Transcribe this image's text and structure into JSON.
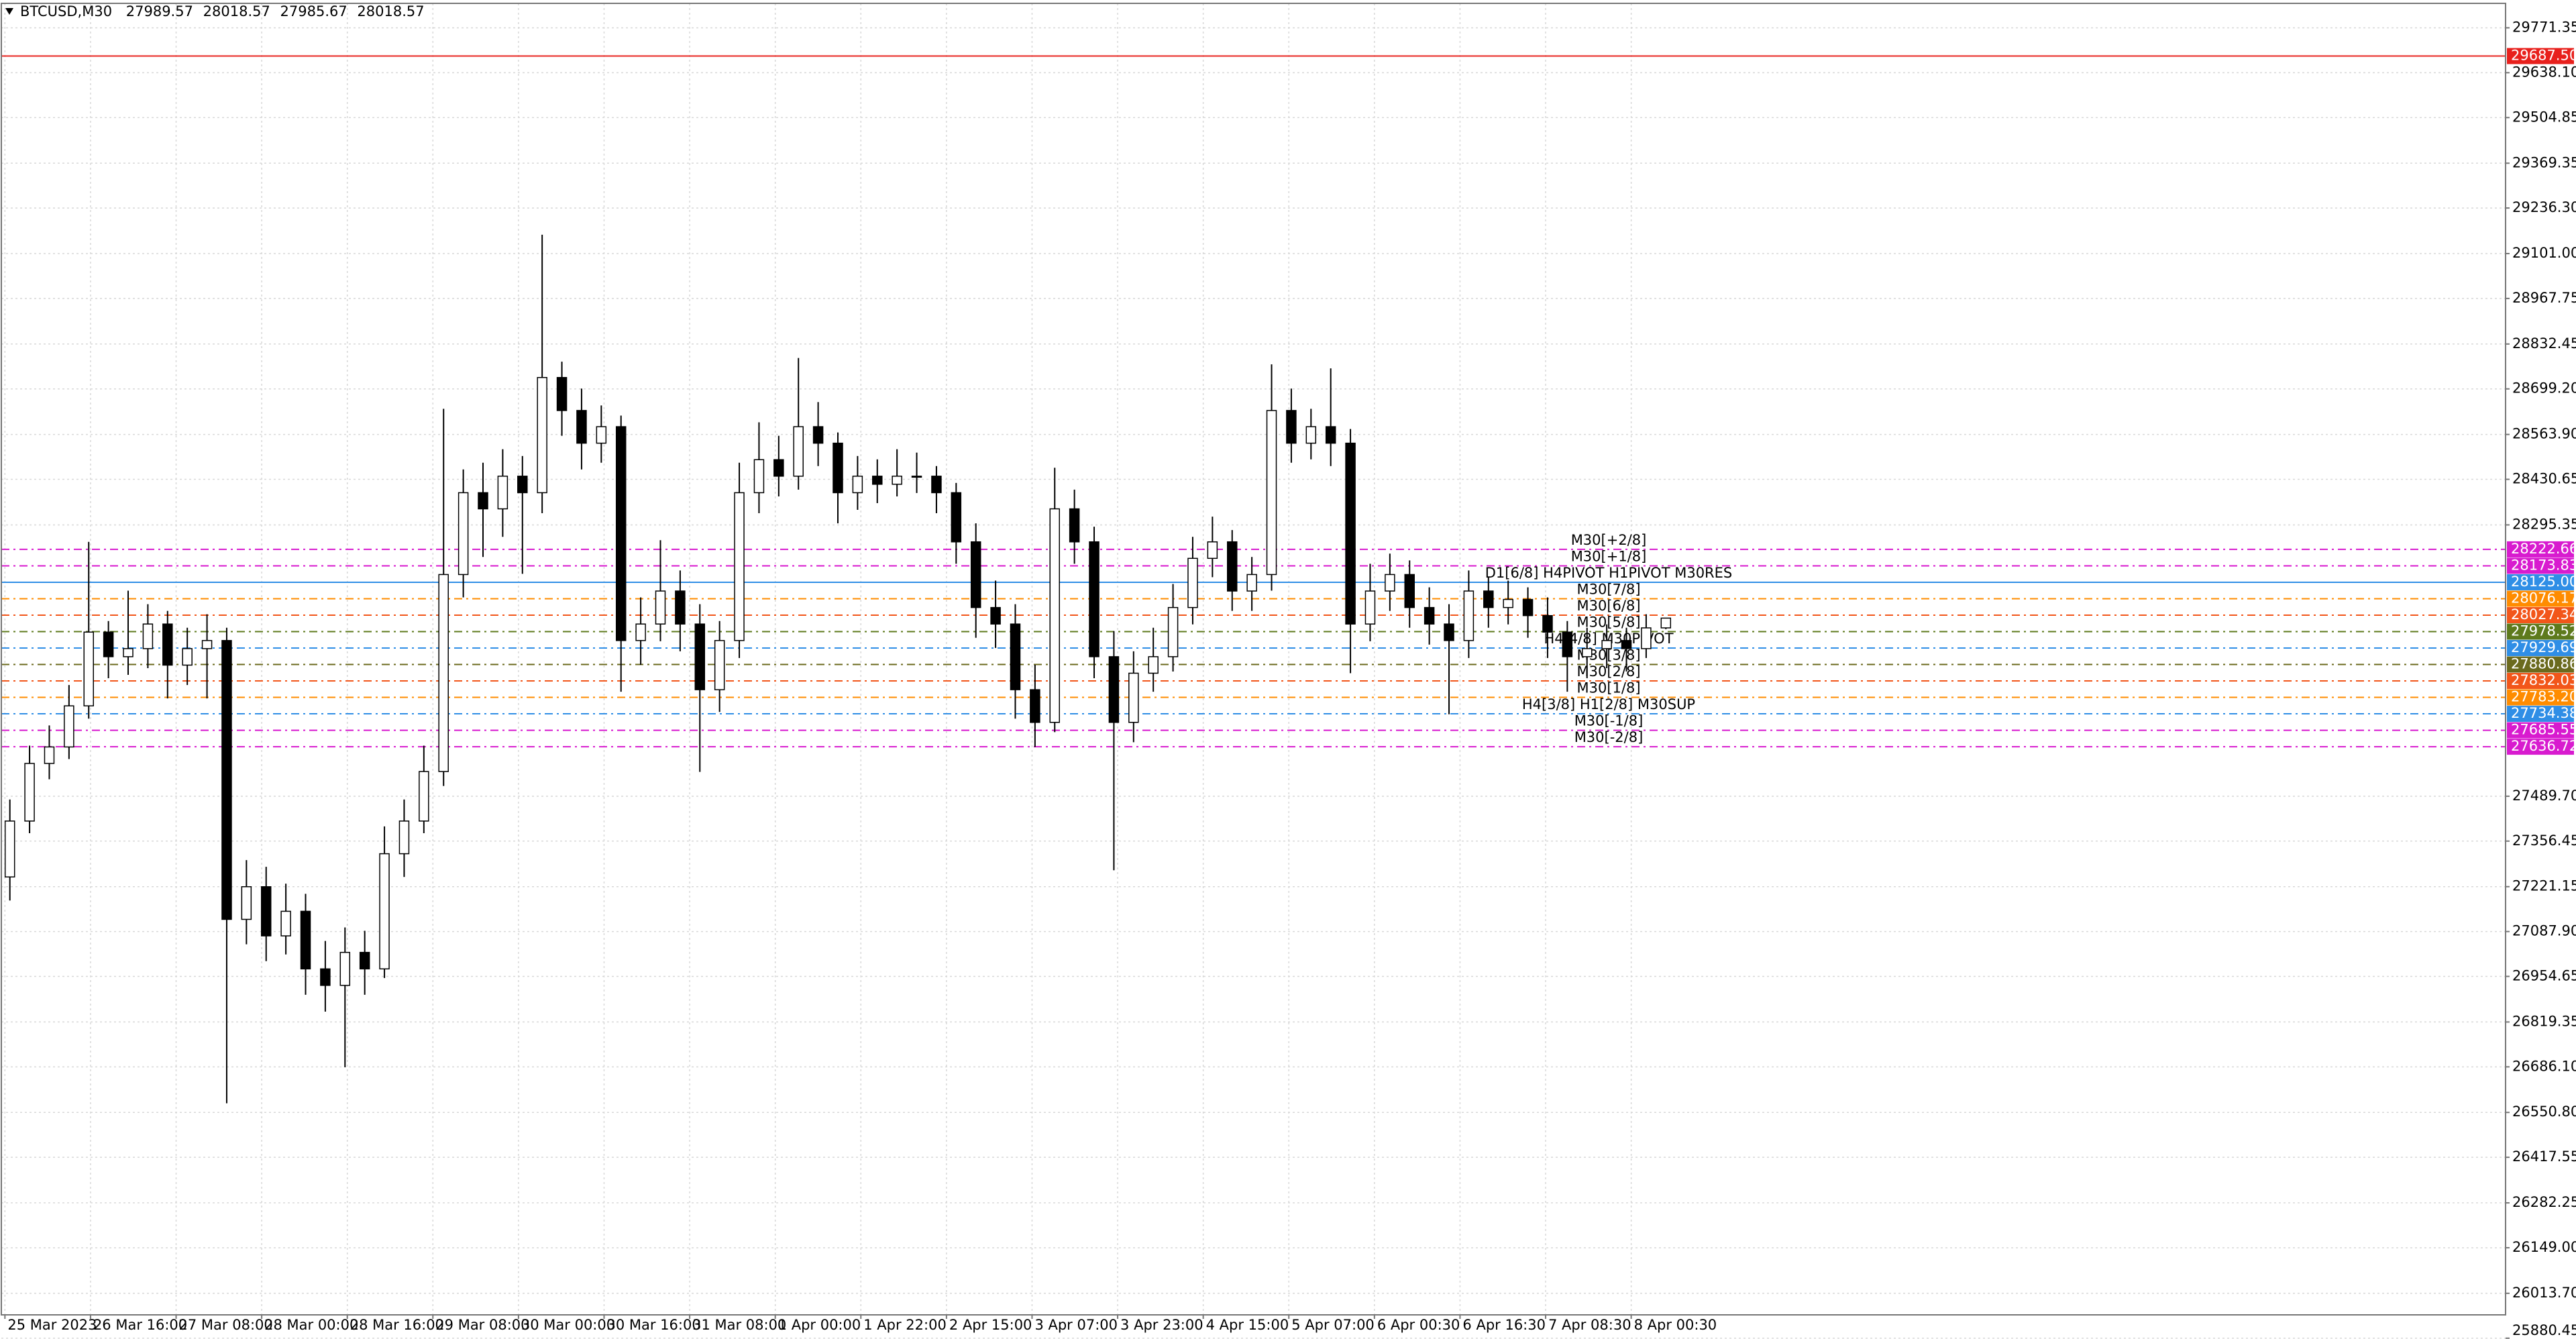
{
  "chart_data": {
    "type": "candlestick",
    "symbol": "BTCUSD,M30",
    "categories": [
      "25 Mar 2023",
      "26 Mar 16:00",
      "27 Mar 08:00",
      "28 Mar 00:00",
      "28 Mar 16:00",
      "29 Mar 08:00",
      "30 Mar 00:00",
      "30 Mar 16:00",
      "31 Mar 08:00",
      "1 Apr 00:00",
      "1 Apr 22:00",
      "2 Apr 15:00",
      "3 Apr 07:00",
      "3 Apr 23:00",
      "4 Apr 15:00",
      "5 Apr 07:00",
      "6 Apr 00:30",
      "6 Apr 16:30",
      "7 Apr 08:30",
      "8 Apr 00:30"
    ],
    "ylim": [
      25878,
      29840
    ],
    "yticks": [
      29771.35,
      {
        "value": 29638.1,
        "label": "29638.10"
      },
      29504.85,
      29369.35,
      {
        "value": 29236.3,
        "label": "29236.30"
      },
      {
        "value": 29101,
        "label": "29101.00"
      },
      28967.75,
      28832.45,
      {
        "value": 28699.2,
        "label": "28699.20"
      },
      {
        "value": 28563.9,
        "label": "28563.90"
      },
      28430.65,
      28295.35,
      {
        "value": 27489.7,
        "label": "27489.70"
      },
      27356.45,
      27221.15,
      {
        "value": 27087.9,
        "label": "27087.90"
      },
      26954.65,
      26819.35,
      {
        "value": 26686.1,
        "label": "26686.10"
      },
      {
        "value": 26550.8,
        "label": "26550.80"
      },
      26417.55,
      26282.25,
      {
        "value": 26149,
        "label": "26149.00"
      },
      {
        "value": 26013.7,
        "label": "26013.70"
      },
      25880.45
    ],
    "grid": true,
    "candles": [
      [
        27250,
        27480,
        27180,
        27416
      ],
      [
        27416,
        27640,
        27380,
        27587
      ],
      [
        27587,
        27700,
        27540,
        27636
      ],
      [
        27636,
        27820,
        27600,
        27758
      ],
      [
        27758,
        28245,
        27720,
        27977
      ],
      [
        27977,
        28010,
        27840,
        27904
      ],
      [
        27904,
        28100,
        27850,
        27928
      ],
      [
        27928,
        28060,
        27870,
        28001
      ],
      [
        28001,
        28040,
        27780,
        27879
      ],
      [
        27879,
        27990,
        27820,
        27928
      ],
      [
        27928,
        28030,
        27780,
        27952
      ],
      [
        27952,
        27990,
        26578,
        27124
      ],
      [
        27124,
        27300,
        27050,
        27221
      ],
      [
        27221,
        27280,
        27000,
        27075
      ],
      [
        27075,
        27230,
        27020,
        27148
      ],
      [
        27148,
        27200,
        26900,
        26977
      ],
      [
        26977,
        27060,
        26850,
        26928
      ],
      [
        26928,
        27100,
        26685,
        27026
      ],
      [
        27026,
        27090,
        26900,
        26977
      ],
      [
        26977,
        27400,
        26950,
        27319
      ],
      [
        27319,
        27480,
        27250,
        27416
      ],
      [
        27416,
        27640,
        27380,
        27563
      ],
      [
        27563,
        28640,
        27520,
        28148
      ],
      [
        28148,
        28460,
        28080,
        28391
      ],
      [
        28391,
        28480,
        28200,
        28343
      ],
      [
        28343,
        28520,
        28260,
        28440
      ],
      [
        28440,
        28500,
        28150,
        28391
      ],
      [
        28391,
        29157,
        28330,
        28733
      ],
      [
        28733,
        28780,
        28560,
        28635
      ],
      [
        28635,
        28700,
        28460,
        28538
      ],
      [
        28538,
        28650,
        28480,
        28587
      ],
      [
        28587,
        28620,
        27800,
        27952
      ],
      [
        27952,
        28080,
        27880,
        28001
      ],
      [
        28001,
        28250,
        27950,
        28099
      ],
      [
        28099,
        28160,
        27920,
        28001
      ],
      [
        28001,
        28060,
        27562,
        27806
      ],
      [
        27806,
        28010,
        27740,
        27952
      ],
      [
        27952,
        28480,
        27900,
        28391
      ],
      [
        28391,
        28600,
        28330,
        28489
      ],
      [
        28489,
        28560,
        28380,
        28440
      ],
      [
        28440,
        28791,
        28400,
        28587
      ],
      [
        28587,
        28660,
        28470,
        28538
      ],
      [
        28538,
        28570,
        28300,
        28391
      ],
      [
        28391,
        28500,
        28340,
        28440
      ],
      [
        28440,
        28490,
        28360,
        28416
      ],
      [
        28416,
        28520,
        28380,
        28440
      ],
      [
        28440,
        28510,
        28390,
        28440
      ],
      [
        28440,
        28470,
        28330,
        28391
      ],
      [
        28391,
        28420,
        28180,
        28245
      ],
      [
        28245,
        28300,
        27960,
        28050
      ],
      [
        28050,
        28130,
        27930,
        28001
      ],
      [
        28001,
        28060,
        27720,
        27806
      ],
      [
        27806,
        27880,
        27636,
        27709
      ],
      [
        27709,
        28465,
        27680,
        28343
      ],
      [
        28343,
        28400,
        28180,
        28245
      ],
      [
        28245,
        28290,
        27840,
        27904
      ],
      [
        27904,
        27980,
        27270,
        27709
      ],
      [
        27709,
        27920,
        27650,
        27855
      ],
      [
        27855,
        27990,
        27800,
        27904
      ],
      [
        27904,
        28120,
        27860,
        28050
      ],
      [
        28050,
        28260,
        28000,
        28196
      ],
      [
        28196,
        28320,
        28140,
        28245
      ],
      [
        28245,
        28280,
        28040,
        28099
      ],
      [
        28099,
        28200,
        28040,
        28148
      ],
      [
        28148,
        28772,
        28100,
        28635
      ],
      [
        28635,
        28700,
        28480,
        28538
      ],
      [
        28538,
        28640,
        28490,
        28587
      ],
      [
        28587,
        28760,
        28470,
        28538
      ],
      [
        28538,
        28580,
        27855,
        28001
      ],
      [
        28001,
        28180,
        27950,
        28099
      ],
      [
        28099,
        28210,
        28040,
        28148
      ],
      [
        28148,
        28190,
        27990,
        28050
      ],
      [
        28050,
        28110,
        27940,
        28001
      ],
      [
        28001,
        28060,
        27733,
        27952
      ],
      [
        27952,
        28160,
        27900,
        28099
      ],
      [
        28099,
        28140,
        27990,
        28050
      ],
      [
        28050,
        28130,
        28000,
        28074
      ],
      [
        28074,
        28110,
        27960,
        28026
      ],
      [
        28026,
        28080,
        27900,
        27977
      ],
      [
        27977,
        28010,
        27800,
        27904
      ],
      [
        27904,
        27990,
        27840,
        27928
      ],
      [
        27928,
        28000,
        27870,
        27952
      ],
      [
        27952,
        27990,
        27860,
        27928
      ],
      [
        27928,
        28030,
        27900,
        27989.57
      ],
      [
        27989.57,
        28018.57,
        27985.67,
        28018.57
      ]
    ],
    "levels": [
      {
        "value": 29687.5,
        "value_label": "29687.50",
        "color": "#e8201c",
        "style": "solid"
      },
      {
        "name": "M30[+2/8]",
        "value": 28222.66,
        "color": "#d81bcf",
        "style": "dashdot"
      },
      {
        "name": "M30[+1/8]",
        "value": 28173.83,
        "color": "#d81bcf",
        "style": "dashdot"
      },
      {
        "name": "D1[6/8] H4PIVOT H1PIVOT M30RES",
        "value": 28125,
        "value_label": "28125.00",
        "color": "#2f8ee6",
        "style": "solid"
      },
      {
        "name": "M30[7/8]",
        "value": 28076.17,
        "color": "#ff8c00",
        "style": "dashdot"
      },
      {
        "name": "M30[6/8]",
        "value": 28027.34,
        "color": "#f2561a",
        "style": "dashdot"
      },
      {
        "name": "M30[5/8]",
        "value": 27978.52,
        "color": "#5e7a1c",
        "style": "dashdot"
      },
      {
        "name": "H4[4/8] M30PIVOT",
        "value": 27929.69,
        "color": "#2f8ee6",
        "style": "dashdot"
      },
      {
        "name": "M30[3/8]",
        "value": 27880.86,
        "color": "#6b6a1e",
        "style": "dashdot"
      },
      {
        "name": "M30[2/8]",
        "value": 27832.03,
        "color": "#f2561a",
        "style": "dashdot"
      },
      {
        "name": "M30[1/8]",
        "value": 27783.2,
        "value_label": "27783.20",
        "color": "#ff8c00",
        "style": "dashdot"
      },
      {
        "name": "H4[3/8] H1[2/8] M30SUP",
        "value": 27734.38,
        "color": "#2f8ee6",
        "style": "dashdot"
      },
      {
        "name": "M30[-1/8]",
        "value": 27685.55,
        "color": "#d81bcf",
        "style": "dashdot"
      },
      {
        "name": "M30[-2/8]",
        "value": 27636.72,
        "color": "#d81bcf",
        "style": "dashdot"
      }
    ]
  }
}
